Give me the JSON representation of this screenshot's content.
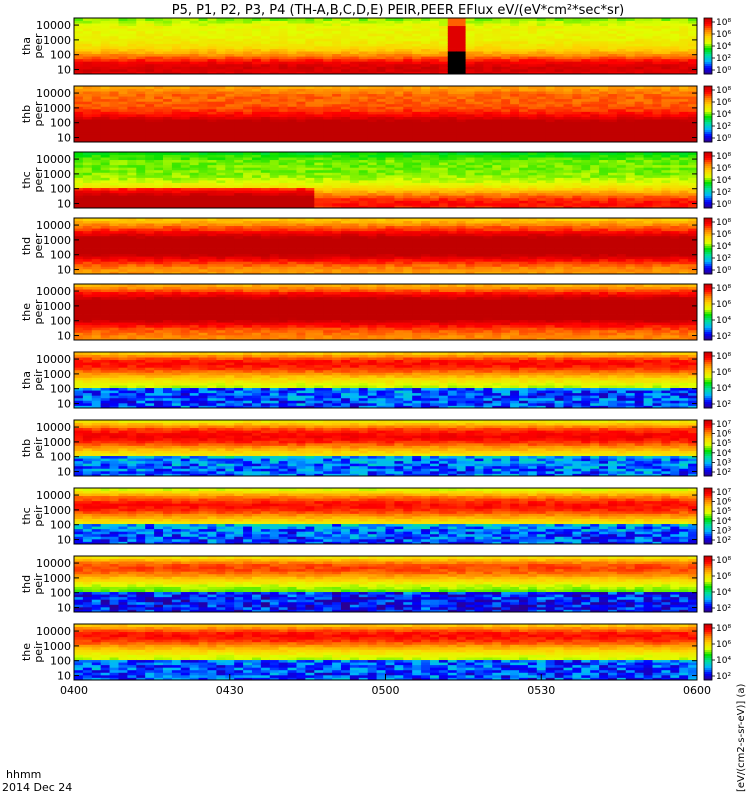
{
  "chart_data": {
    "type": "heatmap",
    "title": "P5, P1, P2, P3, P4 (TH-A,B,C,D,E) PEIR,PEER EFlux eV/(eV*cm²*sec*sr)",
    "colorbar_units": "[eV/(cm2-s-sr-eV)] (a)",
    "x_axis": {
      "range": [
        "0400",
        "0600"
      ],
      "tick_labels": [
        "0400",
        "0430",
        "0500",
        "0530",
        "0600"
      ],
      "time_format_label": "hhmm",
      "date_label": "2014 Dec 24"
    },
    "y_axis": {
      "scale": "log",
      "range": [
        5,
        30000
      ],
      "tick_labels": [
        "10",
        "100",
        "1000",
        "10000"
      ],
      "unit": "eV"
    },
    "colormap": [
      "#2b0090",
      "#0000ff",
      "#00b4ff",
      "#00e0a0",
      "#00e000",
      "#e0ff00",
      "#ffd000",
      "#ff8000",
      "#ff0000",
      "#c00000"
    ],
    "panels": [
      {
        "label_top": "tha",
        "label_bottom": "peer",
        "colorbar_ticks": [
          "10⁸",
          "10⁶",
          "10⁴",
          "10²",
          "10⁰"
        ],
        "features": {
          "peak_energy_eV": 12,
          "base_level": 0.58,
          "gap_time_fraction": [
            0.594,
            0.62
          ]
        }
      },
      {
        "label_top": "thb",
        "label_bottom": "peer",
        "colorbar_ticks": [
          "10⁸",
          "10⁶",
          "10⁴",
          "10²",
          "10⁰"
        ],
        "features": {
          "peak_energy_eV": 20,
          "base_level": 0.8
        }
      },
      {
        "label_top": "thc",
        "label_bottom": "peer",
        "colorbar_ticks": [
          "10⁸",
          "10⁶",
          "10⁴",
          "10²",
          "10⁰"
        ],
        "features": {
          "peak_energy_eV": 10,
          "base_level": 0.5,
          "enhanced_until_fraction": 0.38
        }
      },
      {
        "label_top": "thd",
        "label_bottom": "peer",
        "colorbar_ticks": [
          "10⁸",
          "10⁶",
          "10⁴",
          "10²",
          "10⁰"
        ],
        "features": {
          "peak_energy_eV": 400,
          "base_level": 0.72
        }
      },
      {
        "label_top": "the",
        "label_bottom": "peer",
        "colorbar_ticks": [
          "10⁸",
          "10⁶",
          "10⁴",
          "10²"
        ],
        "features": {
          "peak_energy_eV": 600,
          "base_level": 0.75
        }
      },
      {
        "label_top": "tha",
        "label_bottom": "peir",
        "colorbar_ticks": [
          "10⁸",
          "10⁶",
          "10⁴",
          "10²"
        ],
        "features": {
          "peak_energy_eV": 5000,
          "base_level": 0.5
        }
      },
      {
        "label_top": "thb",
        "label_bottom": "peir",
        "colorbar_ticks": [
          "10⁷",
          "10⁶",
          "10⁵",
          "10⁴",
          "10³",
          "10²"
        ],
        "features": {
          "peak_energy_eV": 2500,
          "base_level": 0.52
        }
      },
      {
        "label_top": "thc",
        "label_bottom": "peir",
        "colorbar_ticks": [
          "10⁷",
          "10⁶",
          "10⁵",
          "10⁴",
          "10³",
          "10²"
        ],
        "features": {
          "peak_energy_eV": 2000,
          "base_level": 0.5
        }
      },
      {
        "label_top": "thd",
        "label_bottom": "peir",
        "colorbar_ticks": [
          "10⁸",
          "10⁶",
          "10⁴",
          "10²"
        ],
        "features": {
          "peak_energy_eV": 5000,
          "base_level": 0.45
        }
      },
      {
        "label_top": "the",
        "label_bottom": "peir",
        "colorbar_ticks": [
          "10⁸",
          "10⁶",
          "10⁴",
          "10²"
        ],
        "features": {
          "peak_energy_eV": 5000,
          "base_level": 0.5
        }
      }
    ]
  }
}
